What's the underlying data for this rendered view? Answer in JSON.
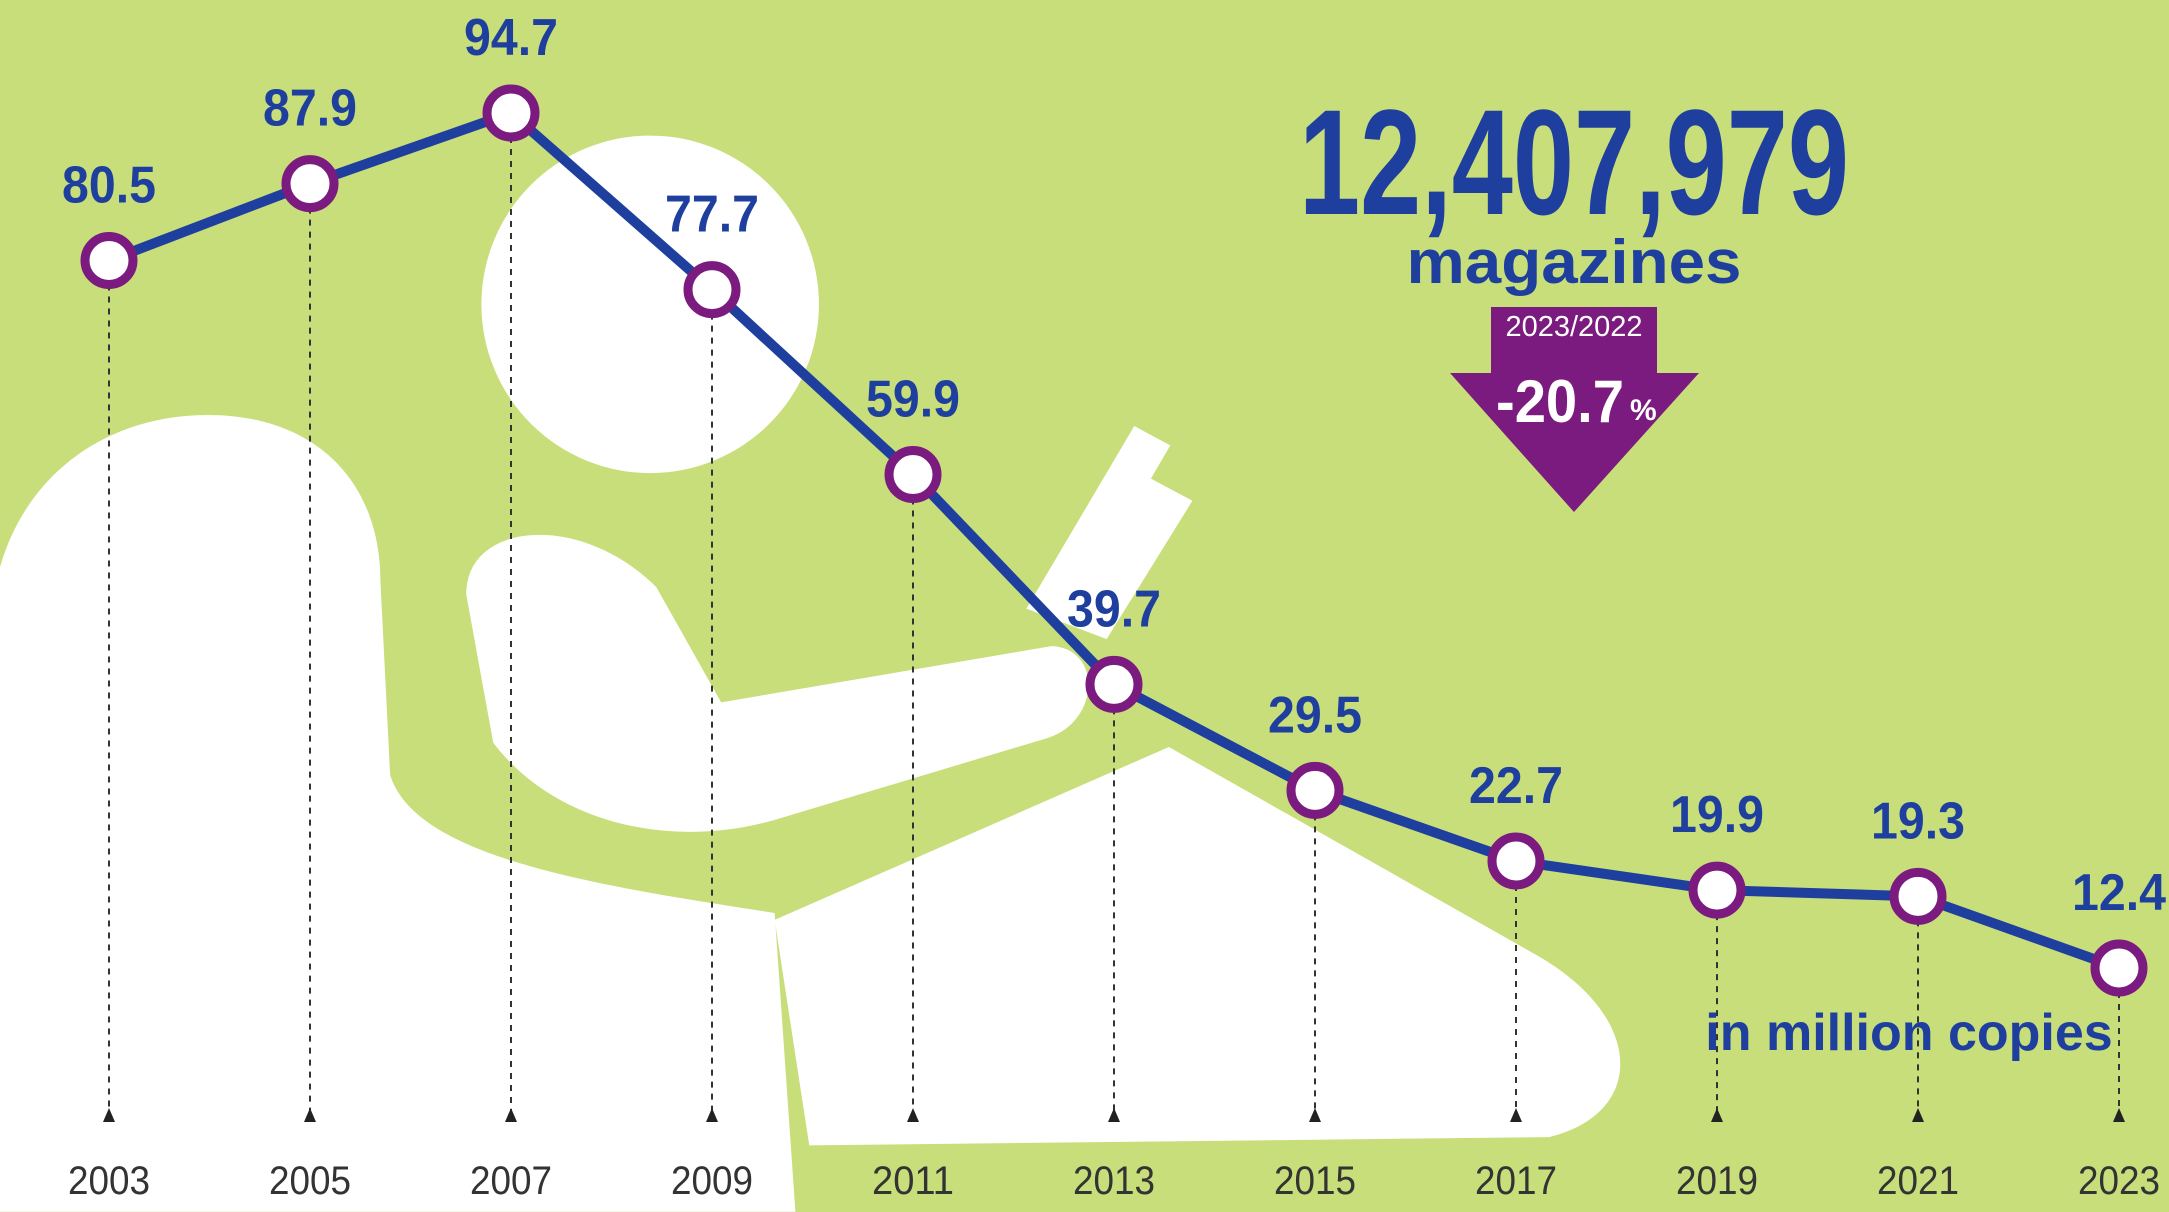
{
  "chart_data": {
    "type": "line",
    "categories": [
      "2003",
      "2005",
      "2007",
      "2009",
      "2011",
      "2013",
      "2015",
      "2017",
      "2019",
      "2021",
      "2023"
    ],
    "values": [
      80.5,
      87.9,
      94.7,
      77.7,
      59.9,
      39.7,
      29.5,
      22.7,
      19.9,
      19.3,
      12.4
    ],
    "color": "#1f3f9e",
    "marker_color": "#7b1a7f",
    "annotations": {
      "total": "12,407,979",
      "total_unit": "magazines",
      "period": "2023/2022",
      "change": "-20.7",
      "change_unit": "%",
      "unit_note": "in million copies"
    }
  }
}
